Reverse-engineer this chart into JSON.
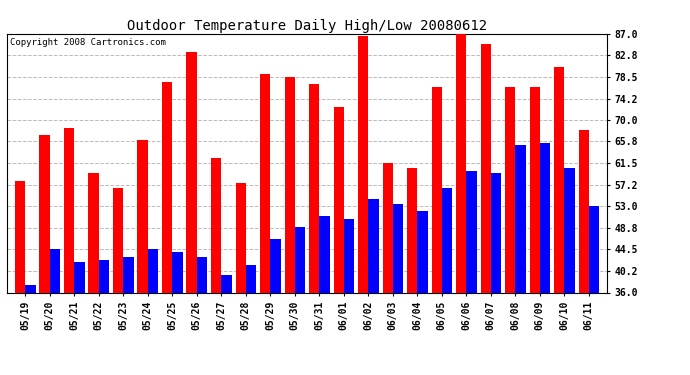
{
  "title": "Outdoor Temperature Daily High/Low 20080612",
  "copyright": "Copyright 2008 Cartronics.com",
  "labels": [
    "05/19",
    "05/20",
    "05/21",
    "05/22",
    "05/23",
    "05/24",
    "05/25",
    "05/26",
    "05/27",
    "05/28",
    "05/29",
    "05/30",
    "05/31",
    "06/01",
    "06/02",
    "06/03",
    "06/04",
    "06/05",
    "06/06",
    "06/07",
    "06/08",
    "06/09",
    "06/10",
    "06/11"
  ],
  "highs": [
    58.0,
    67.0,
    68.5,
    59.5,
    56.5,
    66.0,
    77.5,
    83.5,
    62.5,
    57.5,
    79.0,
    78.5,
    77.0,
    72.5,
    86.5,
    61.5,
    60.5,
    76.5,
    87.0,
    85.0,
    76.5,
    76.5,
    80.5,
    68.0
  ],
  "lows": [
    37.5,
    44.5,
    42.0,
    42.5,
    43.0,
    44.5,
    44.0,
    43.0,
    39.5,
    41.5,
    46.5,
    49.0,
    51.0,
    50.5,
    54.5,
    53.5,
    52.0,
    56.5,
    60.0,
    59.5,
    65.0,
    65.5,
    60.5,
    53.0
  ],
  "high_color": "#ff0000",
  "low_color": "#0000ff",
  "bg_color": "#ffffff",
  "grid_color": "#bbbbbb",
  "ylim_min": 36.0,
  "ylim_max": 87.0,
  "yticks": [
    36.0,
    40.2,
    44.5,
    48.8,
    53.0,
    57.2,
    61.5,
    65.8,
    70.0,
    74.2,
    78.5,
    82.8,
    87.0
  ],
  "bar_width": 0.42,
  "title_fontsize": 10,
  "tick_fontsize": 7,
  "copyright_fontsize": 6.5
}
